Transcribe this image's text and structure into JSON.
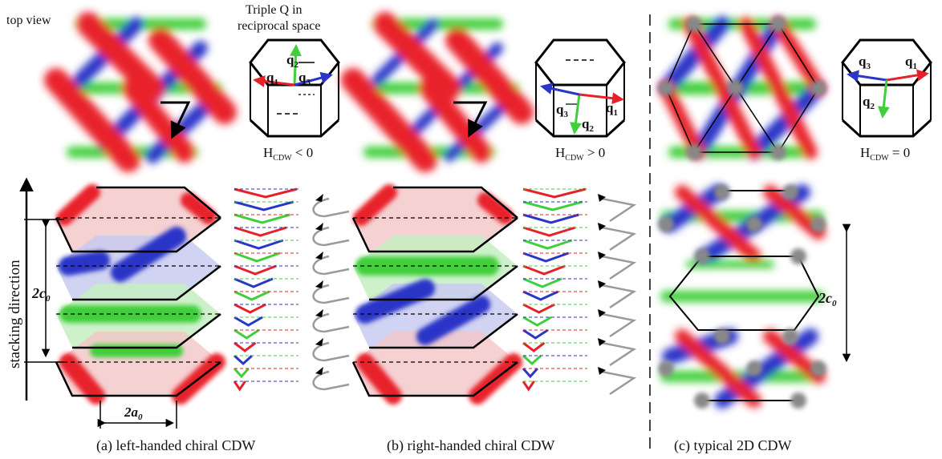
{
  "top_view_label": "top view",
  "triple_q_line1": "Triple Q in",
  "triple_q_line2": "reciprocal space",
  "q_labels": {
    "q1": "q",
    "q2": "q",
    "q3": "q",
    "sub1": "1",
    "sub2": "2",
    "sub3": "3"
  },
  "helicity": {
    "a": {
      "h": "H",
      "sub": "CDW",
      "rel": " < 0"
    },
    "b": {
      "h": "H",
      "sub": "CDW",
      "rel": " > 0"
    },
    "c": {
      "h": "H",
      "sub": "CDW",
      "rel": " = 0"
    }
  },
  "stacking_label": "stacking direction",
  "c0_label": "2c",
  "c0_sub": "0",
  "a0_label": "2a",
  "a0_sub": "0",
  "captions": {
    "a": "(a) left-handed chiral CDW",
    "b": "(b) right-handed chiral CDW",
    "c": "(c) typical 2D CDW"
  },
  "colors": {
    "q1": "#e8202a",
    "q2": "#3fcf3a",
    "q3": "#2a36c8",
    "node": "#888888",
    "arrow_grey": "#9a9a9a"
  }
}
